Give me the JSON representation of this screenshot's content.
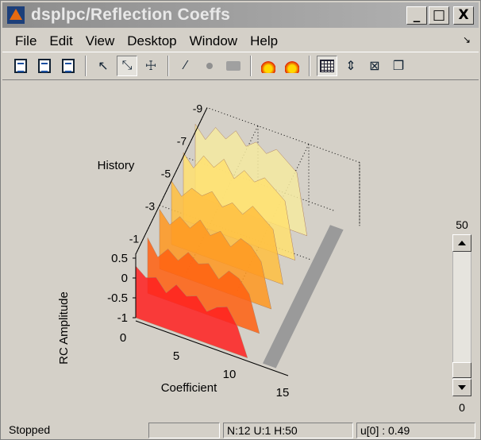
{
  "window": {
    "title": "dsplpc/Reflection Coeffs",
    "buttons": [
      "_",
      "□",
      "X"
    ]
  },
  "menu": [
    "File",
    "Edit",
    "View",
    "Desktop",
    "Window",
    "Help"
  ],
  "toolbar": {
    "icons": [
      "new-figure-icon",
      "open-icon",
      "save-icon",
      "pointer-icon",
      "edit-plot-icon",
      "pan-icon",
      "link-icon",
      "dot-icon",
      "camera-icon",
      "fire-colormap-icon",
      "fire-colormap-2-icon",
      "grid-icon",
      "autoscale-icon",
      "zoom-fit-icon",
      "export-icon"
    ]
  },
  "chart_data": {
    "type": "area",
    "title": "",
    "xlabel": "Coefficient",
    "ylabel": "RC Amplitude",
    "zlabel": "History",
    "x_ticks": [
      "0",
      "5",
      "10",
      "15"
    ],
    "y_ticks": [
      "0.5",
      "0",
      "-0.5",
      "-1"
    ],
    "history_ticks": [
      "-1",
      "-3",
      "-5",
      "-7",
      "-9"
    ],
    "colormap": [
      "#ff2020",
      "#ff6010",
      "#ff9820",
      "#ffc040",
      "#ffe070",
      "#f4eaa0"
    ],
    "series": [
      {
        "values": [
          0.3,
          0.1,
          0.2,
          -0.1,
          0.2,
          0.0,
          0.1,
          -0.2,
          0.0,
          0.1,
          -0.3,
          -1
        ]
      },
      {
        "values": [
          0.4,
          0.0,
          0.3,
          0.1,
          0.4,
          0.2,
          0.3,
          0.0,
          0.3,
          0.2,
          -0.1,
          -1
        ]
      },
      {
        "values": [
          0.5,
          0.2,
          0.5,
          0.3,
          0.6,
          0.3,
          0.5,
          0.2,
          0.5,
          0.4,
          0.1,
          -1
        ]
      },
      {
        "values": [
          0.6,
          0.3,
          0.6,
          0.5,
          0.7,
          0.4,
          0.6,
          0.4,
          0.7,
          0.5,
          0.3,
          -1
        ]
      },
      {
        "values": [
          0.7,
          0.4,
          0.8,
          0.6,
          0.9,
          0.5,
          0.8,
          0.6,
          0.8,
          0.6,
          0.4,
          -1
        ]
      },
      {
        "values": [
          0.8,
          0.5,
          0.9,
          0.7,
          1.0,
          0.7,
          0.9,
          0.7,
          0.9,
          0.7,
          0.5,
          -1
        ]
      }
    ]
  },
  "slider": {
    "max_label": "50",
    "min_label": "0"
  },
  "status": {
    "state": "Stopped",
    "info": "N:12 U:1 H:50",
    "readout": "u[0] : 0.49"
  }
}
